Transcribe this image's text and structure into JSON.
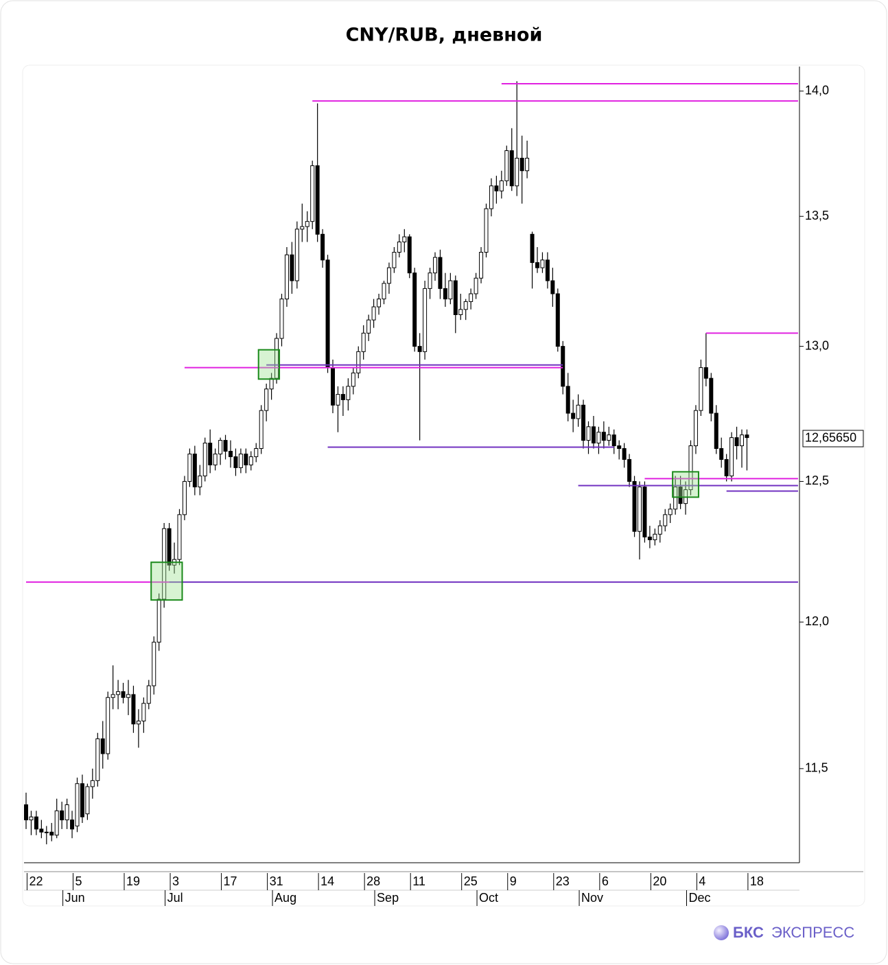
{
  "chart_data": {
    "type": "candlestick",
    "title": "CNY/RUB, дневной",
    "log_scale": true,
    "ylim": [
      11.19,
      14.1
    ],
    "yticks": [
      {
        "value": 14,
        "label": "14,0"
      },
      {
        "value": 13.5,
        "label": "13,5"
      },
      {
        "value": 13,
        "label": "13,0"
      },
      {
        "value": 12.5,
        "label": "12,5"
      },
      {
        "value": 12,
        "label": "12,0"
      },
      {
        "value": 11.5,
        "label": "11,5"
      }
    ],
    "last_price": {
      "value": 12.6565,
      "label": "12,65650"
    },
    "categories": [
      null,
      "22",
      null,
      null,
      null,
      null,
      null,
      null,
      null,
      null,
      "5",
      null,
      null,
      null,
      null,
      null,
      null,
      null,
      null,
      null,
      "19",
      null,
      null,
      null,
      null,
      null,
      null,
      null,
      null,
      "3",
      null,
      null,
      null,
      null,
      null,
      null,
      null,
      null,
      null,
      "17",
      null,
      null,
      null,
      null,
      null,
      null,
      null,
      null,
      "31",
      null,
      null,
      null,
      null,
      null,
      null,
      null,
      null,
      null,
      "14",
      null,
      null,
      null,
      null,
      null,
      null,
      null,
      null,
      "28",
      null,
      null,
      null,
      null,
      null,
      null,
      null,
      null,
      "11",
      null,
      null,
      null,
      null,
      null,
      null,
      null,
      null,
      null,
      "25",
      null,
      null,
      null,
      null,
      null,
      null,
      null,
      null,
      "9",
      null,
      null,
      null,
      null,
      null,
      null,
      null,
      null,
      "23",
      null,
      null,
      null,
      null,
      null,
      null,
      null,
      null,
      "6",
      null,
      null,
      null,
      null,
      null,
      null,
      null,
      null,
      null,
      "20",
      null,
      null,
      null,
      null,
      null,
      null,
      null,
      null,
      "4",
      null,
      null,
      null,
      null,
      null,
      null,
      null,
      null,
      null,
      "18",
      null,
      null,
      null,
      null,
      null,
      null,
      null,
      null,
      null
    ],
    "months": [
      null,
      null,
      null,
      null,
      null,
      null,
      null,
      null,
      "Jun",
      null,
      null,
      null,
      null,
      null,
      null,
      null,
      null,
      null,
      null,
      null,
      null,
      null,
      null,
      null,
      null,
      null,
      null,
      null,
      "Jul",
      null,
      null,
      null,
      null,
      null,
      null,
      null,
      null,
      null,
      null,
      null,
      null,
      null,
      null,
      null,
      null,
      null,
      null,
      null,
      null,
      "Aug",
      null,
      null,
      null,
      null,
      null,
      null,
      null,
      null,
      null,
      null,
      null,
      null,
      null,
      null,
      null,
      null,
      null,
      null,
      null,
      "Sep",
      null,
      null,
      null,
      null,
      null,
      null,
      null,
      null,
      null,
      null,
      null,
      null,
      null,
      null,
      null,
      null,
      null,
      null,
      null,
      "Oct",
      null,
      null,
      null,
      null,
      null,
      null,
      null,
      null,
      null,
      null,
      null,
      null,
      null,
      null,
      null,
      null,
      null,
      null,
      null,
      "Nov",
      null,
      null,
      null,
      null,
      null,
      null,
      null,
      null,
      null,
      null,
      null,
      null,
      null,
      null,
      null,
      null,
      null,
      null,
      null,
      null,
      "Dec",
      null,
      null,
      null,
      null,
      null,
      null,
      null,
      null,
      null,
      null,
      null,
      null,
      null,
      null,
      null,
      null,
      null,
      null,
      null,
      null,
      null
    ],
    "ohlc": [
      [
        11.38,
        11.42,
        11.3,
        11.33
      ],
      [
        11.33,
        11.36,
        11.28,
        11.34
      ],
      [
        11.34,
        11.36,
        11.28,
        11.3
      ],
      [
        11.3,
        11.33,
        11.27,
        11.29
      ],
      [
        11.29,
        11.31,
        11.25,
        11.29
      ],
      [
        11.29,
        11.32,
        11.26,
        11.28
      ],
      [
        11.28,
        11.4,
        11.27,
        11.36
      ],
      [
        11.36,
        11.39,
        11.3,
        11.33
      ],
      [
        11.33,
        11.4,
        11.3,
        11.38
      ],
      [
        11.33,
        11.36,
        11.27,
        11.3
      ],
      [
        11.31,
        11.47,
        11.29,
        11.45
      ],
      [
        11.45,
        11.48,
        11.32,
        11.34
      ],
      [
        11.35,
        11.45,
        11.33,
        11.44
      ],
      [
        11.44,
        11.5,
        11.4,
        11.46
      ],
      [
        11.46,
        11.62,
        11.44,
        11.6
      ],
      [
        11.6,
        11.66,
        11.5,
        11.55
      ],
      [
        11.55,
        11.76,
        11.53,
        11.74
      ],
      [
        11.74,
        11.85,
        11.7,
        11.75
      ],
      [
        11.75,
        11.8,
        11.7,
        11.76
      ],
      [
        11.76,
        11.79,
        11.72,
        11.74
      ],
      [
        11.74,
        11.8,
        11.68,
        11.75
      ],
      [
        11.75,
        11.78,
        11.62,
        11.65
      ],
      [
        11.65,
        11.7,
        11.57,
        11.66
      ],
      [
        11.66,
        11.74,
        11.62,
        11.72
      ],
      [
        11.72,
        11.8,
        11.7,
        11.78
      ],
      [
        11.78,
        11.95,
        11.75,
        11.93
      ],
      [
        11.93,
        12.1,
        11.9,
        12.08
      ],
      [
        12.08,
        12.35,
        12.05,
        12.33
      ],
      [
        12.33,
        12.35,
        12.18,
        12.2
      ],
      [
        12.2,
        12.28,
        12.17,
        12.22
      ],
      [
        12.22,
        12.4,
        12.2,
        12.38
      ],
      [
        12.38,
        12.52,
        12.36,
        12.5
      ],
      [
        12.5,
        12.62,
        12.48,
        12.6
      ],
      [
        12.6,
        12.63,
        12.45,
        12.48
      ],
      [
        12.48,
        12.56,
        12.45,
        12.52
      ],
      [
        12.52,
        12.66,
        12.5,
        12.64
      ],
      [
        12.64,
        12.69,
        12.53,
        12.56
      ],
      [
        12.56,
        12.62,
        12.54,
        12.6
      ],
      [
        12.6,
        12.66,
        12.56,
        12.65
      ],
      [
        12.65,
        12.67,
        12.58,
        12.61
      ],
      [
        12.61,
        12.65,
        12.55,
        12.59
      ],
      [
        12.59,
        12.62,
        12.52,
        12.55
      ],
      [
        12.55,
        12.62,
        12.53,
        12.6
      ],
      [
        12.6,
        12.62,
        12.53,
        12.56
      ],
      [
        12.56,
        12.61,
        12.54,
        12.59
      ],
      [
        12.59,
        12.64,
        12.57,
        12.62
      ],
      [
        12.62,
        12.78,
        12.6,
        12.76
      ],
      [
        12.76,
        12.86,
        12.72,
        12.84
      ],
      [
        12.84,
        12.9,
        12.8,
        12.88
      ],
      [
        12.88,
        13.05,
        12.86,
        13.03
      ],
      [
        13.03,
        13.2,
        13.0,
        13.18
      ],
      [
        13.18,
        13.38,
        13.15,
        13.35
      ],
      [
        13.35,
        13.4,
        13.2,
        13.25
      ],
      [
        13.25,
        13.48,
        13.22,
        13.45
      ],
      [
        13.45,
        13.55,
        13.4,
        13.46
      ],
      [
        13.46,
        13.52,
        13.4,
        13.48
      ],
      [
        13.48,
        13.72,
        13.45,
        13.7
      ],
      [
        13.7,
        13.95,
        13.4,
        13.43
      ],
      [
        13.43,
        13.45,
        13.3,
        13.33
      ],
      [
        13.33,
        13.35,
        12.9,
        12.92
      ],
      [
        12.92,
        12.95,
        12.75,
        12.78
      ],
      [
        12.78,
        12.85,
        12.68,
        12.82
      ],
      [
        12.82,
        12.85,
        12.74,
        12.8
      ],
      [
        12.8,
        12.88,
        12.76,
        12.85
      ],
      [
        12.85,
        12.92,
        12.82,
        12.9
      ],
      [
        12.9,
        13.0,
        12.88,
        12.98
      ],
      [
        12.98,
        13.08,
        12.95,
        13.05
      ],
      [
        13.05,
        13.12,
        13.02,
        13.1
      ],
      [
        13.1,
        13.18,
        13.07,
        13.15
      ],
      [
        13.15,
        13.2,
        13.12,
        13.18
      ],
      [
        13.18,
        13.25,
        13.16,
        13.24
      ],
      [
        13.24,
        13.32,
        13.2,
        13.3
      ],
      [
        13.3,
        13.38,
        13.28,
        13.36
      ],
      [
        13.36,
        13.43,
        13.34,
        13.4
      ],
      [
        13.4,
        13.45,
        13.36,
        13.42
      ],
      [
        13.42,
        13.43,
        13.26,
        13.28
      ],
      [
        13.28,
        13.3,
        12.98,
        13.0
      ],
      [
        13.0,
        13.05,
        12.65,
        12.98
      ],
      [
        12.98,
        13.25,
        12.95,
        13.22
      ],
      [
        13.22,
        13.3,
        13.18,
        13.28
      ],
      [
        13.28,
        13.36,
        13.25,
        13.34
      ],
      [
        13.34,
        13.37,
        13.18,
        13.22
      ],
      [
        13.22,
        13.28,
        13.15,
        13.18
      ],
      [
        13.18,
        13.28,
        13.16,
        13.25
      ],
      [
        13.25,
        13.27,
        13.05,
        13.12
      ],
      [
        13.12,
        13.2,
        13.1,
        13.14
      ],
      [
        13.14,
        13.18,
        13.1,
        13.17
      ],
      [
        13.17,
        13.22,
        13.14,
        13.2
      ],
      [
        13.2,
        13.28,
        13.18,
        13.26
      ],
      [
        13.26,
        13.38,
        13.24,
        13.36
      ],
      [
        13.36,
        13.55,
        13.34,
        13.53
      ],
      [
        13.53,
        13.65,
        13.5,
        13.62
      ],
      [
        13.62,
        13.66,
        13.55,
        13.6
      ],
      [
        13.6,
        13.68,
        13.57,
        13.64
      ],
      [
        13.64,
        13.78,
        13.62,
        13.76
      ],
      [
        13.76,
        13.85,
        13.6,
        13.62
      ],
      [
        13.62,
        14.04,
        13.58,
        13.73
      ],
      [
        13.73,
        13.82,
        13.55,
        13.68
      ],
      [
        13.68,
        13.8,
        13.65,
        13.73
      ],
      [
        13.43,
        13.44,
        13.22,
        13.32
      ],
      [
        13.32,
        13.38,
        13.28,
        13.3
      ],
      [
        13.3,
        13.36,
        13.28,
        13.33
      ],
      [
        13.33,
        13.36,
        13.22,
        13.25
      ],
      [
        13.25,
        13.3,
        13.15,
        13.2
      ],
      [
        13.2,
        13.22,
        12.98,
        13.0
      ],
      [
        13.0,
        13.02,
        12.82,
        12.85
      ],
      [
        12.85,
        12.9,
        12.72,
        12.75
      ],
      [
        12.75,
        12.8,
        12.68,
        12.73
      ],
      [
        12.73,
        12.82,
        12.7,
        12.78
      ],
      [
        12.78,
        12.8,
        12.62,
        12.65
      ],
      [
        12.65,
        12.72,
        12.6,
        12.7
      ],
      [
        12.7,
        12.74,
        12.62,
        12.64
      ],
      [
        12.64,
        12.7,
        12.6,
        12.68
      ],
      [
        12.68,
        12.72,
        12.62,
        12.65
      ],
      [
        12.65,
        12.7,
        12.63,
        12.67
      ],
      [
        12.67,
        12.69,
        12.6,
        12.63
      ],
      [
        12.63,
        12.65,
        12.58,
        12.62
      ],
      [
        12.62,
        12.64,
        12.55,
        12.58
      ],
      [
        12.58,
        12.6,
        12.48,
        12.5
      ],
      [
        12.5,
        12.52,
        12.3,
        12.32
      ],
      [
        12.32,
        12.5,
        12.22,
        12.48
      ],
      [
        12.48,
        12.5,
        12.28,
        12.3
      ],
      [
        12.3,
        12.34,
        12.26,
        12.29
      ],
      [
        12.29,
        12.33,
        12.27,
        12.31
      ],
      [
        12.31,
        12.36,
        12.28,
        12.34
      ],
      [
        12.34,
        12.4,
        12.32,
        12.38
      ],
      [
        12.38,
        12.42,
        12.35,
        12.4
      ],
      [
        12.4,
        12.52,
        12.38,
        12.48
      ],
      [
        12.48,
        12.52,
        12.4,
        12.42
      ],
      [
        12.42,
        12.5,
        12.38,
        12.47
      ],
      [
        12.47,
        12.65,
        12.45,
        12.63
      ],
      [
        12.63,
        12.78,
        12.6,
        12.76
      ],
      [
        12.76,
        12.95,
        12.74,
        12.92
      ],
      [
        12.92,
        13.05,
        12.85,
        12.88
      ],
      [
        12.88,
        12.9,
        12.72,
        12.75
      ],
      [
        12.75,
        12.78,
        12.6,
        12.62
      ],
      [
        12.62,
        12.66,
        12.55,
        12.58
      ],
      [
        12.58,
        12.6,
        12.5,
        12.52
      ],
      [
        12.52,
        12.68,
        12.5,
        12.66
      ],
      [
        12.66,
        12.7,
        12.58,
        12.63
      ],
      [
        12.63,
        12.69,
        12.55,
        12.67
      ],
      [
        12.67,
        12.69,
        12.54,
        12.66
      ],
      null,
      null,
      null,
      null,
      null,
      null,
      null,
      null,
      null,
      null
    ],
    "levels": [
      {
        "price": 14.03,
        "from": 93,
        "to": 151,
        "color": "#e020e0"
      },
      {
        "price": 13.96,
        "from": 56,
        "to": 151,
        "color": "#e020e0"
      },
      {
        "price": 12.92,
        "from": 31,
        "to": 105,
        "color": "#e020e0"
      },
      {
        "price": 12.93,
        "from": 47,
        "to": 105,
        "color": "#7030c0"
      },
      {
        "price": 12.625,
        "from": 59,
        "to": 115,
        "color": "#7030c0"
      },
      {
        "price": 12.485,
        "from": 108,
        "to": 151,
        "color": "#7030c0"
      },
      {
        "price": 12.51,
        "from": 121,
        "to": 151,
        "color": "#e020e0"
      },
      {
        "price": 12.465,
        "from": 137,
        "to": 151,
        "color": "#7030c0"
      },
      {
        "price": 13.05,
        "from": 133,
        "to": 151,
        "color": "#e020e0"
      },
      {
        "price": 12.14,
        "from": 0,
        "to": 28,
        "color": "#e020e0"
      },
      {
        "price": 12.14,
        "from": 28,
        "to": 151,
        "color": "#7030c0"
      }
    ],
    "zones": [
      {
        "from": 25,
        "to": 30,
        "low": 12.077,
        "high": 12.21,
        "color": "#1a8a1a"
      },
      {
        "from": 46,
        "to": 49,
        "low": 12.877,
        "high": 12.987,
        "color": "#1a8a1a"
      },
      {
        "from": 127,
        "to": 131,
        "low": 12.443,
        "high": 12.535,
        "color": "#1a8a1a"
      }
    ]
  },
  "logo": {
    "bold": "БКС",
    "light": "ЭКСПРЕСС"
  }
}
